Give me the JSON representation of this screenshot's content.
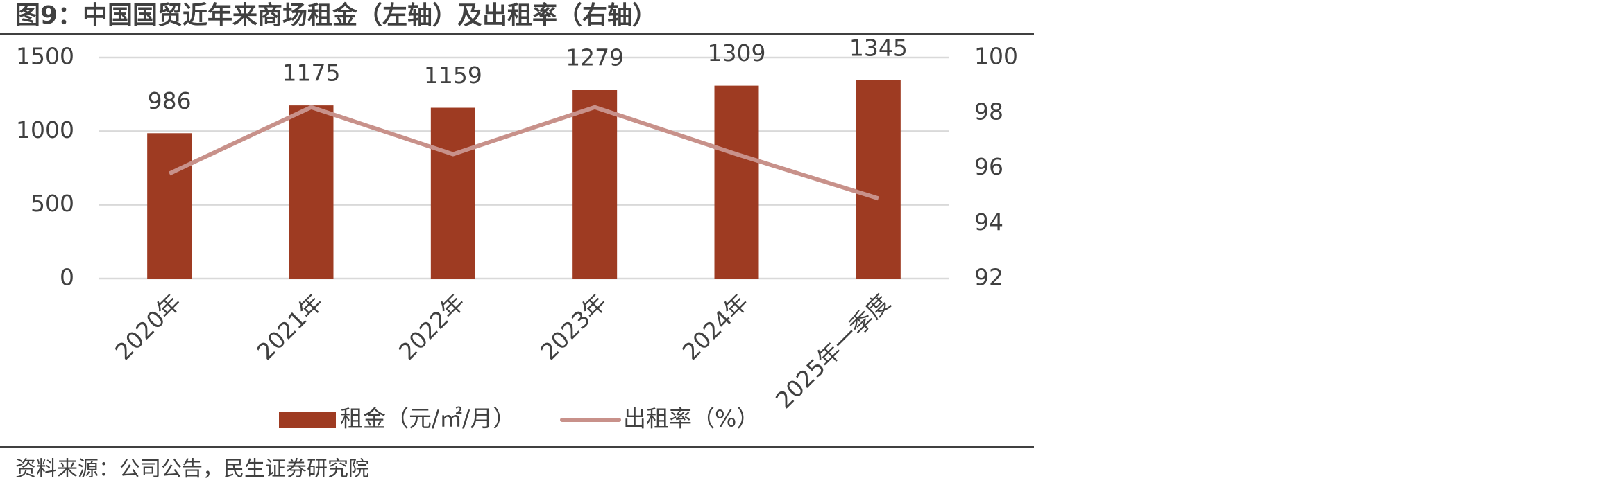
{
  "chart_data": {
    "type": "bar_line",
    "title": "图9：中国国贸近年来商场租金（左轴）及出租率（右轴）",
    "source": "资料来源：公司公告，民生证券研究院",
    "categories": [
      "2020年",
      "2021年",
      "2022年",
      "2023年",
      "2024年",
      "2025年一季度"
    ],
    "series": [
      {
        "name": "租金（元/㎡/月）",
        "type": "bar",
        "color": "#9e3b22",
        "values": [
          986,
          1175,
          1159,
          1279,
          1309,
          1345
        ]
      },
      {
        "name": "出租率（%）",
        "type": "line",
        "axis": "y2",
        "color": "#c8918a",
        "values": [
          95.8,
          98.2,
          96.5,
          98.2,
          96.5,
          94.9
        ]
      }
    ],
    "ylim": [
      0,
      1500
    ],
    "yticks": [
      0,
      500,
      1000,
      1500
    ],
    "y2lim": [
      92,
      100
    ],
    "y2ticks": [
      92,
      94,
      96,
      98,
      100
    ],
    "grid": true,
    "legend": "bottom"
  }
}
